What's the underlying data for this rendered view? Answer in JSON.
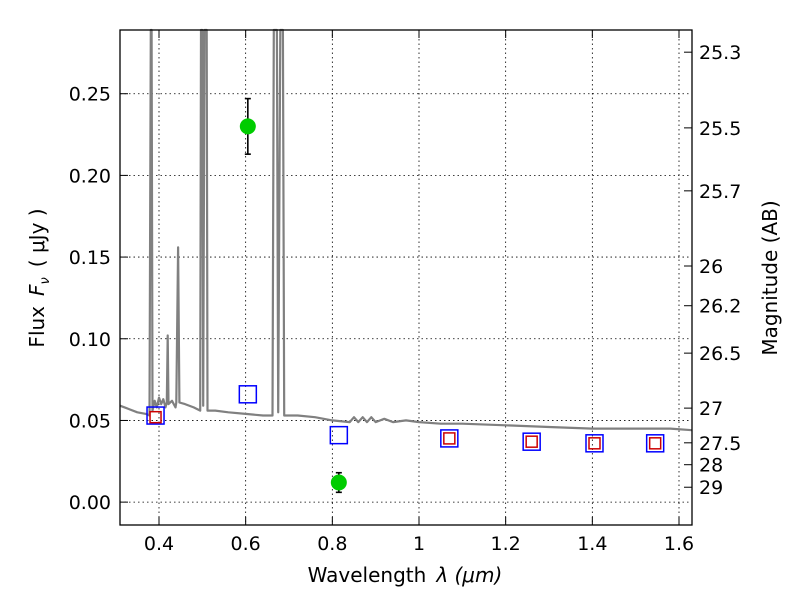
{
  "chart_data": {
    "type": "scatter",
    "title": "",
    "xlabel": "Wavelength",
    "xlabel_math": "λ (μm)",
    "ylabel": "Flux",
    "ylabel_math": "F",
    "ylabel_sub": "ν",
    "ylabel_units": "( μJy )",
    "y2label": "Magnitude (AB)",
    "xlim": [
      0.31,
      1.63
    ],
    "ylim": [
      -0.014,
      0.289
    ],
    "grid": true,
    "x_ticks": [
      {
        "value": 0.4,
        "label": "0.4"
      },
      {
        "value": 0.6,
        "label": "0.6"
      },
      {
        "value": 0.8,
        "label": "0.8"
      },
      {
        "value": 1.0,
        "label": "1"
      },
      {
        "value": 1.2,
        "label": "1.2"
      },
      {
        "value": 1.4,
        "label": "1.4"
      },
      {
        "value": 1.6,
        "label": "1.6"
      }
    ],
    "y_ticks": [
      {
        "value": 0.0,
        "label": "0.00"
      },
      {
        "value": 0.05,
        "label": "0.05"
      },
      {
        "value": 0.1,
        "label": "0.10"
      },
      {
        "value": 0.15,
        "label": "0.15"
      },
      {
        "value": 0.2,
        "label": "0.20"
      },
      {
        "value": 0.25,
        "label": "0.25"
      }
    ],
    "y2_ticks": [
      {
        "mag": 25.3,
        "label": "25.3"
      },
      {
        "mag": 25.5,
        "label": "25.5"
      },
      {
        "mag": 25.7,
        "label": "25.7"
      },
      {
        "mag": 26.0,
        "label": "26"
      },
      {
        "mag": 26.2,
        "label": "26.2"
      },
      {
        "mag": 26.5,
        "label": "26.5"
      },
      {
        "mag": 27.0,
        "label": "27"
      },
      {
        "mag": 27.5,
        "label": "27.5"
      },
      {
        "mag": 28.0,
        "label": "28"
      },
      {
        "mag": 29.0,
        "label": "29"
      }
    ],
    "series": [
      {
        "name": "model SED",
        "kind": "line",
        "color": "#808080",
        "points": [
          [
            0.31,
            0.059
          ],
          [
            0.33,
            0.057
          ],
          [
            0.35,
            0.055
          ],
          [
            0.37,
            0.054
          ],
          [
            0.378,
            0.053
          ],
          [
            0.381,
            0.289
          ],
          [
            0.383,
            0.289
          ],
          [
            0.385,
            0.056
          ],
          [
            0.39,
            0.062
          ],
          [
            0.395,
            0.058
          ],
          [
            0.4,
            0.064
          ],
          [
            0.405,
            0.06
          ],
          [
            0.41,
            0.063
          ],
          [
            0.415,
            0.058
          ],
          [
            0.418,
            0.061
          ],
          [
            0.42,
            0.102
          ],
          [
            0.422,
            0.06
          ],
          [
            0.43,
            0.062
          ],
          [
            0.438,
            0.058
          ],
          [
            0.44,
            0.061
          ],
          [
            0.444,
            0.156
          ],
          [
            0.447,
            0.061
          ],
          [
            0.46,
            0.06
          ],
          [
            0.48,
            0.058
          ],
          [
            0.495,
            0.056
          ],
          [
            0.497,
            0.289
          ],
          [
            0.5,
            0.289
          ],
          [
            0.502,
            0.059
          ],
          [
            0.505,
            0.289
          ],
          [
            0.51,
            0.289
          ],
          [
            0.512,
            0.056
          ],
          [
            0.53,
            0.056
          ],
          [
            0.56,
            0.055
          ],
          [
            0.6,
            0.054
          ],
          [
            0.64,
            0.053
          ],
          [
            0.662,
            0.053
          ],
          [
            0.665,
            0.289
          ],
          [
            0.672,
            0.289
          ],
          [
            0.675,
            0.055
          ],
          [
            0.68,
            0.289
          ],
          [
            0.686,
            0.289
          ],
          [
            0.689,
            0.053
          ],
          [
            0.72,
            0.053
          ],
          [
            0.76,
            0.052
          ],
          [
            0.8,
            0.05
          ],
          [
            0.84,
            0.049
          ],
          [
            0.85,
            0.052
          ],
          [
            0.86,
            0.049
          ],
          [
            0.87,
            0.052
          ],
          [
            0.88,
            0.049
          ],
          [
            0.89,
            0.052
          ],
          [
            0.9,
            0.049
          ],
          [
            0.92,
            0.051
          ],
          [
            0.94,
            0.049
          ],
          [
            0.97,
            0.05
          ],
          [
            1.0,
            0.049
          ],
          [
            1.05,
            0.048
          ],
          [
            1.1,
            0.048
          ],
          [
            1.2,
            0.047
          ],
          [
            1.3,
            0.046
          ],
          [
            1.4,
            0.045
          ],
          [
            1.5,
            0.045
          ],
          [
            1.58,
            0.045
          ],
          [
            1.63,
            0.044
          ]
        ]
      },
      {
        "name": "observed (green)",
        "kind": "points_with_errors",
        "color": "#00cc00",
        "points": [
          {
            "x": 0.605,
            "y": 0.23,
            "yerr": [
              0.017,
              0.017
            ]
          },
          {
            "x": 0.815,
            "y": 0.012,
            "yerr": [
              0.006,
              0.006
            ]
          }
        ]
      },
      {
        "name": "model (blue squares)",
        "kind": "squares",
        "color": "#0000ff",
        "points": [
          [
            0.392,
            0.053
          ],
          [
            0.605,
            0.066
          ],
          [
            0.815,
            0.041
          ],
          [
            1.07,
            0.039
          ],
          [
            1.26,
            0.037
          ],
          [
            1.405,
            0.036
          ],
          [
            1.545,
            0.036
          ]
        ]
      },
      {
        "name": "model (red squares)",
        "kind": "squares",
        "color": "#cc0000",
        "points": [
          [
            0.392,
            0.052
          ],
          [
            1.07,
            0.039
          ],
          [
            1.26,
            0.037
          ],
          [
            1.405,
            0.036
          ],
          [
            1.545,
            0.036
          ]
        ]
      }
    ]
  }
}
